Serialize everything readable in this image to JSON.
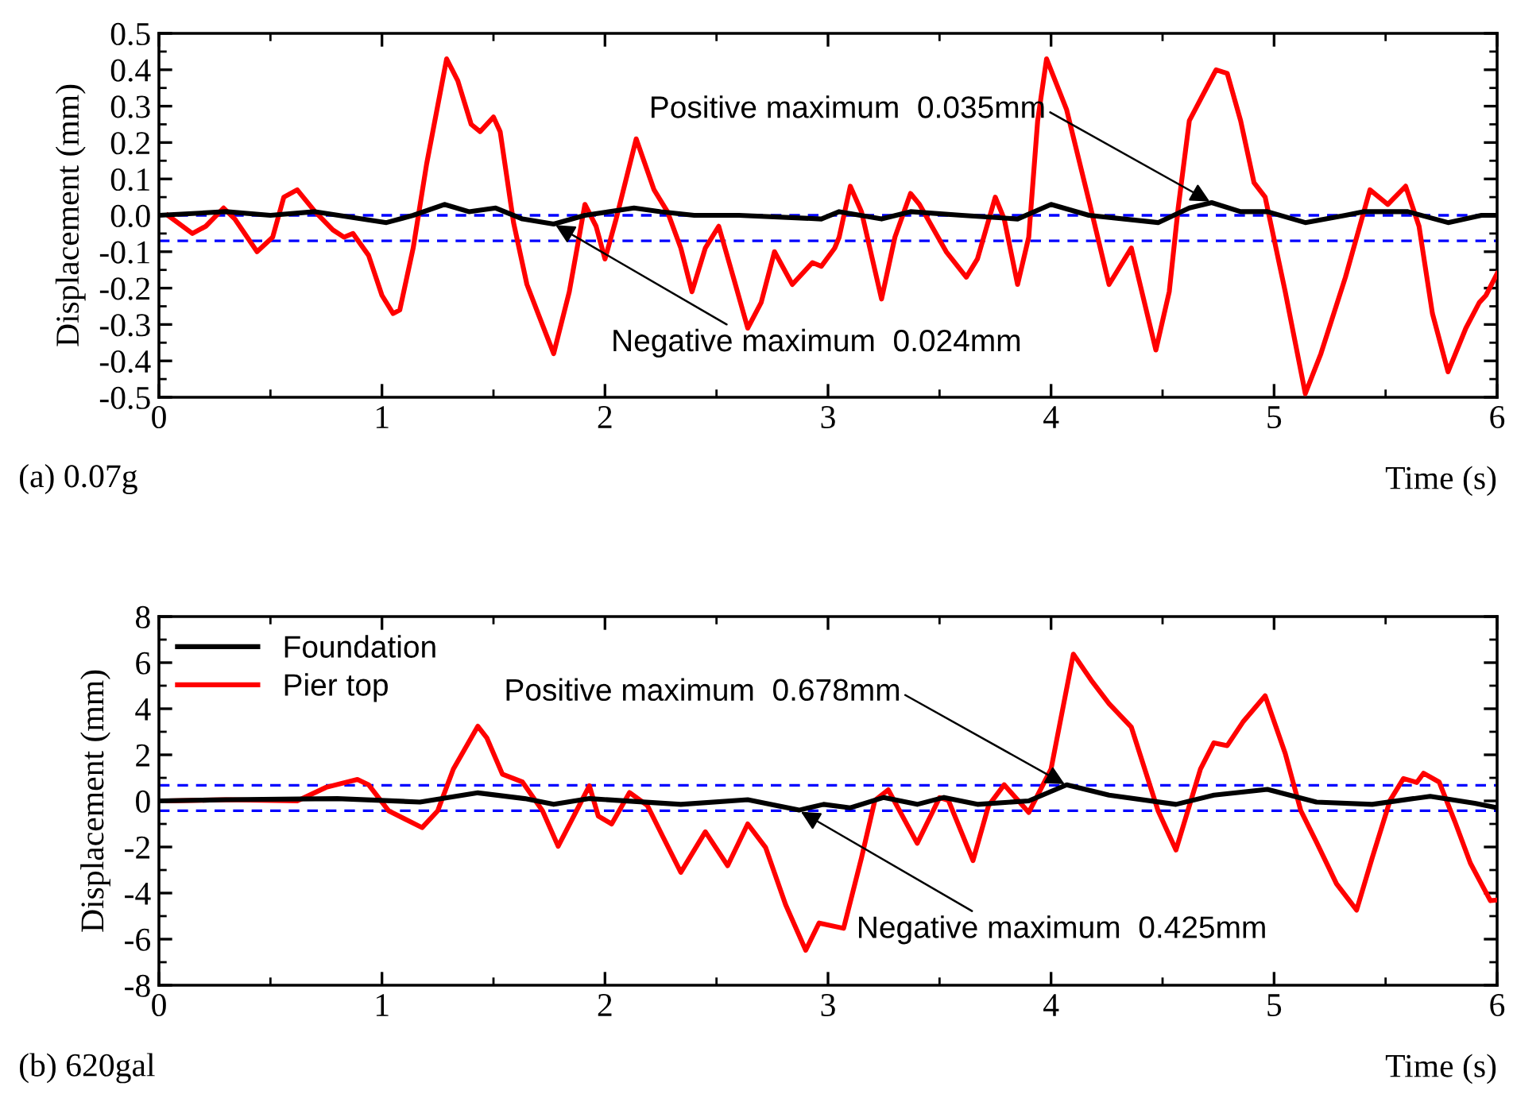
{
  "chart_data": [
    {
      "type": "line",
      "subtitle": "(a) 0.07g",
      "xlabel": "Time (s)",
      "ylabel": "Displacement (mm)",
      "xlim": [
        0,
        6
      ],
      "ylim": [
        -0.5,
        0.5
      ],
      "xticks": [
        0,
        {
          "value": 0.5,
          "label": null
        },
        1,
        {
          "value": 1.5,
          "label": null
        },
        2,
        {
          "value": 2.5,
          "label": null
        },
        3,
        {
          "value": 3.5,
          "label": null
        },
        4,
        {
          "value": 4.5,
          "label": null
        },
        5,
        {
          "value": 5.5,
          "label": null
        },
        6
      ],
      "yticks": [
        -0.5,
        {
          "value": -0.45,
          "label": null
        },
        -0.4,
        {
          "value": -0.35,
          "label": null
        },
        -0.3,
        {
          "value": -0.25,
          "label": null
        },
        -0.2,
        {
          "value": -0.15,
          "label": null
        },
        -0.1,
        {
          "value": -0.05,
          "label": null
        },
        {
          "value": 0.0,
          "label": "0.0"
        },
        {
          "value": 0.05,
          "label": null
        },
        0.1,
        {
          "value": 0.15,
          "label": null
        },
        0.2,
        {
          "value": 0.25,
          "label": null
        },
        0.3,
        {
          "value": 0.35,
          "label": null
        },
        0.4,
        {
          "value": 0.45,
          "label": null
        },
        0.5
      ],
      "grid": false,
      "legend": false,
      "marker": "none",
      "line_style": "solid",
      "ref_lines": [
        {
          "axis": "y",
          "value": 0.0,
          "color": "#0000ff",
          "line_style": "dashed"
        },
        {
          "axis": "y",
          "value": -0.07,
          "color": "#0000ff",
          "line_style": "dashed"
        }
      ],
      "annotations": [
        {
          "text": "Positive maximum  0.035mm",
          "x": 4.72,
          "y": 0.035
        },
        {
          "text": "Negative maximum  0.024mm",
          "x": 1.77,
          "y": -0.024
        }
      ],
      "series": [
        {
          "color": "#ff0000",
          "x": [
            0.04,
            0.15,
            0.21,
            0.29,
            0.34,
            0.44,
            0.51,
            0.56,
            0.62,
            0.7,
            0.78,
            0.83,
            0.87,
            0.94,
            1.0,
            1.05,
            1.08,
            1.14,
            1.2,
            1.29,
            1.34,
            1.4,
            1.44,
            1.5,
            1.53,
            1.59,
            1.65,
            1.7,
            1.77,
            1.84,
            1.91,
            1.96,
            2.0,
            2.05,
            2.14,
            2.22,
            2.28,
            2.34,
            2.39,
            2.45,
            2.51,
            2.58,
            2.64,
            2.7,
            2.76,
            2.84,
            2.93,
            2.97,
            3.03,
            3.05,
            3.1,
            3.15,
            3.24,
            3.3,
            3.37,
            3.41,
            3.53,
            3.62,
            3.67,
            3.75,
            3.79,
            3.85,
            3.9,
            3.94,
            3.98,
            4.07,
            4.17,
            4.26,
            4.36,
            4.47,
            4.53,
            4.57,
            4.62,
            4.74,
            4.79,
            4.85,
            4.91,
            4.96,
            5.05,
            5.14,
            5.21,
            5.32,
            5.43,
            5.51,
            5.59,
            5.65,
            5.71,
            5.78,
            5.86,
            5.92,
            5.95,
            6.0
          ],
          "values": [
            0.0,
            -0.05,
            -0.03,
            0.02,
            -0.01,
            -0.1,
            -0.06,
            0.05,
            0.07,
            0.01,
            -0.04,
            -0.06,
            -0.05,
            -0.11,
            -0.22,
            -0.27,
            -0.26,
            -0.09,
            0.14,
            0.43,
            0.37,
            0.25,
            0.23,
            0.27,
            0.23,
            -0.02,
            -0.19,
            -0.27,
            -0.38,
            -0.21,
            0.03,
            -0.03,
            -0.12,
            -0.01,
            0.21,
            0.07,
            0.01,
            -0.09,
            -0.21,
            -0.09,
            -0.03,
            -0.18,
            -0.31,
            -0.24,
            -0.1,
            -0.19,
            -0.13,
            -0.14,
            -0.09,
            -0.06,
            0.08,
            0.01,
            -0.23,
            -0.06,
            0.06,
            0.03,
            -0.1,
            -0.17,
            -0.12,
            0.05,
            -0.01,
            -0.19,
            -0.06,
            0.26,
            0.43,
            0.29,
            0.04,
            -0.19,
            -0.09,
            -0.37,
            -0.21,
            0.02,
            0.26,
            0.4,
            0.39,
            0.26,
            0.09,
            0.05,
            -0.21,
            -0.49,
            -0.38,
            -0.17,
            0.07,
            0.03,
            0.08,
            -0.03,
            -0.27,
            -0.43,
            -0.31,
            -0.24,
            -0.22,
            -0.16
          ]
        },
        {
          "color": "#000000",
          "x": [
            0.0,
            0.3,
            0.5,
            0.7,
            1.02,
            1.14,
            1.28,
            1.39,
            1.51,
            1.63,
            1.77,
            1.91,
            2.13,
            2.25,
            2.4,
            2.6,
            2.97,
            3.05,
            3.24,
            3.37,
            3.6,
            3.85,
            4.0,
            4.17,
            4.48,
            4.62,
            4.72,
            4.85,
            4.97,
            5.14,
            5.32,
            5.4,
            5.6,
            5.78,
            5.93,
            6.0
          ],
          "values": [
            0.0,
            0.01,
            0.0,
            0.01,
            -0.02,
            0.0,
            0.03,
            0.01,
            0.02,
            -0.01,
            -0.024,
            0.0,
            0.02,
            0.01,
            0.0,
            0.0,
            -0.01,
            0.01,
            -0.01,
            0.01,
            0.0,
            -0.01,
            0.03,
            0.0,
            -0.02,
            0.02,
            0.035,
            0.01,
            0.01,
            -0.02,
            0.0,
            0.01,
            0.01,
            -0.02,
            0.0,
            0.0
          ]
        }
      ]
    },
    {
      "type": "line",
      "subtitle": "(b) 620gal",
      "xlabel": "Time (s)",
      "ylabel": "Displacement (mm)",
      "xlim": [
        0,
        6
      ],
      "ylim": [
        -8,
        8
      ],
      "xticks": [
        0,
        {
          "value": 0.5,
          "label": null
        },
        1,
        {
          "value": 1.5,
          "label": null
        },
        2,
        {
          "value": 2.5,
          "label": null
        },
        3,
        {
          "value": 3.5,
          "label": null
        },
        4,
        {
          "value": 4.5,
          "label": null
        },
        5,
        {
          "value": 5.5,
          "label": null
        },
        6
      ],
      "yticks": [
        -8,
        {
          "value": -7,
          "label": null
        },
        -6,
        {
          "value": -5,
          "label": null
        },
        -4,
        {
          "value": -3,
          "label": null
        },
        -2,
        {
          "value": -1,
          "label": null
        },
        0,
        {
          "value": 1,
          "label": null
        },
        2,
        {
          "value": 3,
          "label": null
        },
        4,
        {
          "value": 5,
          "label": null
        },
        6,
        {
          "value": 7,
          "label": null
        },
        8
      ],
      "grid": false,
      "legend": "top left",
      "marker": "none",
      "line_style": "solid",
      "ref_lines": [
        {
          "axis": "y",
          "value": 0.678,
          "color": "#0000ff",
          "line_style": "dashed"
        },
        {
          "axis": "y",
          "value": -0.425,
          "color": "#0000ff",
          "line_style": "dashed"
        }
      ],
      "annotations": [
        {
          "text": "Positive maximum  0.678mm",
          "x": 4.07,
          "y": 0.678
        },
        {
          "text": "Negative maximum  0.425mm",
          "x": 2.87,
          "y": -0.425
        }
      ],
      "series": [
        {
          "name": "Foundation",
          "color": "#000000",
          "x": [
            0.0,
            0.3,
            0.8,
            1.17,
            1.43,
            1.64,
            1.77,
            1.93,
            2.34,
            2.64,
            2.87,
            2.98,
            3.1,
            3.25,
            3.4,
            3.52,
            3.67,
            3.9,
            4.07,
            4.26,
            4.56,
            4.73,
            4.97,
            5.19,
            5.44,
            5.7,
            5.9,
            6.0
          ],
          "values": [
            0.0,
            0.05,
            0.1,
            -0.05,
            0.35,
            0.1,
            -0.15,
            0.1,
            -0.15,
            0.05,
            -0.4,
            -0.15,
            -0.3,
            0.15,
            -0.15,
            0.15,
            -0.15,
            0.0,
            0.7,
            0.25,
            -0.15,
            0.25,
            0.5,
            -0.05,
            -0.15,
            0.2,
            -0.1,
            -0.3
          ]
        },
        {
          "name": "Pier top",
          "color": "#ff0000",
          "x": [
            0.04,
            0.3,
            0.62,
            0.75,
            0.89,
            0.94,
            1.03,
            1.18,
            1.25,
            1.32,
            1.43,
            1.47,
            1.54,
            1.63,
            1.72,
            1.79,
            1.86,
            1.93,
            1.97,
            2.03,
            2.11,
            2.19,
            2.26,
            2.34,
            2.45,
            2.55,
            2.64,
            2.72,
            2.81,
            2.9,
            2.96,
            3.07,
            3.15,
            3.21,
            3.27,
            3.4,
            3.5,
            3.54,
            3.65,
            3.72,
            3.79,
            3.9,
            4.0,
            4.1,
            4.18,
            4.26,
            4.36,
            4.48,
            4.56,
            4.67,
            4.73,
            4.79,
            4.86,
            4.96,
            5.05,
            5.12,
            5.19,
            5.28,
            5.37,
            5.44,
            5.52,
            5.58,
            5.64,
            5.67,
            5.74,
            5.81,
            5.88,
            5.97,
            6.0
          ],
          "values": [
            0.0,
            0.05,
            0.0,
            0.59,
            0.93,
            0.7,
            -0.43,
            -1.16,
            -0.43,
            1.38,
            3.24,
            2.74,
            1.16,
            0.82,
            -0.43,
            -1.97,
            -0.66,
            0.66,
            -0.66,
            -1.0,
            0.36,
            -0.2,
            -1.56,
            -3.1,
            -1.34,
            -2.81,
            -1.0,
            -2.02,
            -4.51,
            -6.48,
            -5.3,
            -5.53,
            -2.47,
            0.02,
            0.48,
            -1.84,
            0.14,
            0.02,
            -2.59,
            -0.2,
            0.7,
            -0.5,
            1.38,
            6.37,
            5.24,
            4.22,
            3.2,
            -0.43,
            -2.13,
            1.38,
            2.52,
            2.4,
            3.42,
            4.56,
            2.06,
            -0.43,
            -1.79,
            -3.6,
            -4.74,
            -2.47,
            0.02,
            0.97,
            0.8,
            1.2,
            0.82,
            -0.88,
            -2.7,
            -4.33,
            -4.3
          ]
        }
      ]
    }
  ]
}
